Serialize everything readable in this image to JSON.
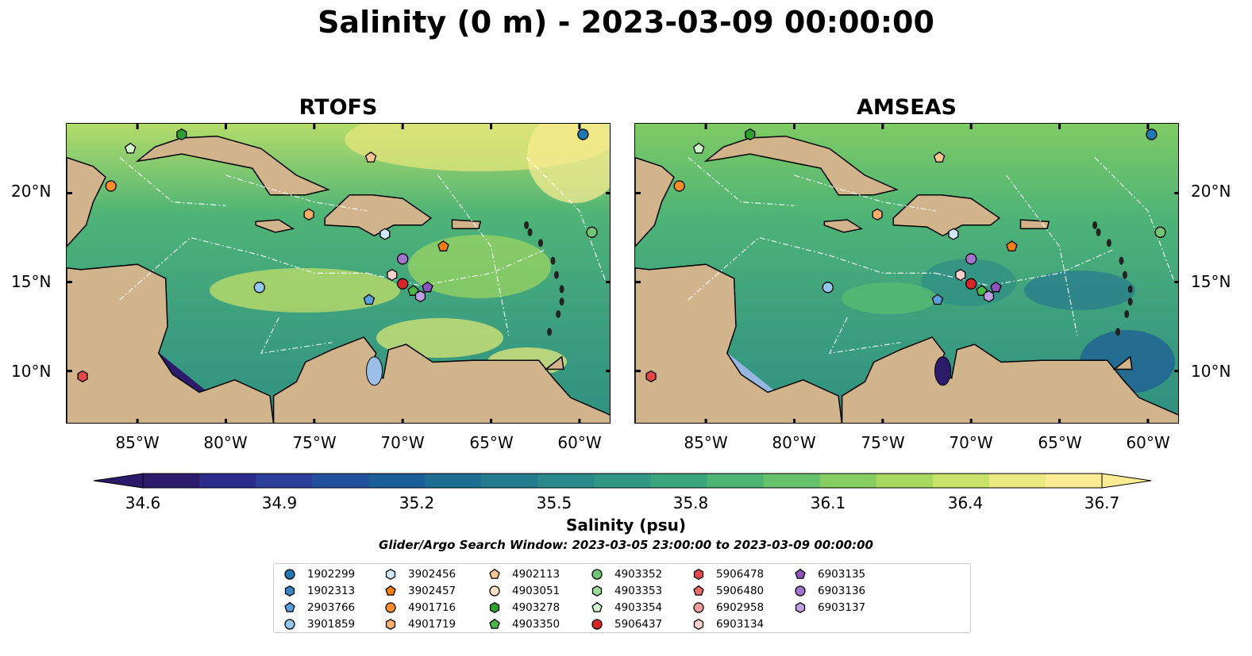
{
  "title": "Salinity (0 m) - 2023-03-09 00:00:00",
  "panels": [
    {
      "name": "RTOFS"
    },
    {
      "name": "AMSEAS"
    }
  ],
  "axes": {
    "lat_ticks": [
      "20°N",
      "15°N",
      "10°N"
    ],
    "lon_ticks": [
      "85°W",
      "80°W",
      "75°W",
      "70°W",
      "65°W",
      "60°W"
    ]
  },
  "colorbar": {
    "label": "Salinity (psu)",
    "ticks": [
      "34.6",
      "34.9",
      "35.2",
      "35.5",
      "35.8",
      "36.1",
      "36.4",
      "36.7"
    ],
    "min": 34.6,
    "max": 36.7,
    "colors": [
      "#2c1a6b",
      "#2b2b8c",
      "#2a3e9a",
      "#21509c",
      "#1b5f98",
      "#1d6e93",
      "#237b8e",
      "#2a8a89",
      "#319883",
      "#3aa67d",
      "#4cb574",
      "#66c26a",
      "#86cd62",
      "#a7d860",
      "#c9e26a",
      "#eae981",
      "#fbec93"
    ]
  },
  "search_window": "Glider/Argo Search Window: 2023-03-05 23:00:00 to 2023-03-09 00:00:00",
  "legend": [
    {
      "id": "1902299",
      "shape": "circle",
      "color": "#1f77b4"
    },
    {
      "id": "1902313",
      "shape": "hexagon",
      "color": "#3b86c6"
    },
    {
      "id": "2903766",
      "shape": "pentagon",
      "color": "#5aa0dd"
    },
    {
      "id": "3901859",
      "shape": "circle",
      "color": "#93c6ec"
    },
    {
      "id": "3902456",
      "shape": "hexagon",
      "color": "#cfe7f8"
    },
    {
      "id": "3902457",
      "shape": "pentagon",
      "color": "#f57f0f"
    },
    {
      "id": "4901716",
      "shape": "circle",
      "color": "#fb8c2c"
    },
    {
      "id": "4901719",
      "shape": "hexagon",
      "color": "#fdad6a"
    },
    {
      "id": "4902113",
      "shape": "pentagon",
      "color": "#fdc692"
    },
    {
      "id": "4903051",
      "shape": "circle",
      "color": "#fde2c8"
    },
    {
      "id": "4903278",
      "shape": "hexagon",
      "color": "#2ca02c"
    },
    {
      "id": "4903350",
      "shape": "pentagon",
      "color": "#49b649"
    },
    {
      "id": "4903352",
      "shape": "circle",
      "color": "#74c476"
    },
    {
      "id": "4903353",
      "shape": "hexagon",
      "color": "#9ed99b"
    },
    {
      "id": "4903354",
      "shape": "pentagon",
      "color": "#d2f2cc"
    },
    {
      "id": "5906437",
      "shape": "circle",
      "color": "#d62728"
    },
    {
      "id": "5906478",
      "shape": "hexagon",
      "color": "#e2474a"
    },
    {
      "id": "5906480",
      "shape": "pentagon",
      "color": "#ec6c6e"
    },
    {
      "id": "6902958",
      "shape": "circle",
      "color": "#f59d9b"
    },
    {
      "id": "6903134",
      "shape": "hexagon",
      "color": "#fcd0cc"
    },
    {
      "id": "6903135",
      "shape": "pentagon",
      "color": "#8c55be"
    },
    {
      "id": "6903136",
      "shape": "circle",
      "color": "#a276cf"
    },
    {
      "id": "6903137",
      "shape": "hexagon",
      "color": "#bf9fe1"
    }
  ],
  "floats": [
    {
      "id": "1902299",
      "lon": -59.8,
      "lat": 23.3
    },
    {
      "id": "4903278",
      "lon": -82.5,
      "lat": 23.3
    },
    {
      "id": "4903354",
      "lon": -85.4,
      "lat": 22.5
    },
    {
      "id": "4902113",
      "lon": -71.8,
      "lat": 22.0
    },
    {
      "id": "4901716",
      "lon": -86.5,
      "lat": 20.4
    },
    {
      "id": "4901719",
      "lon": -75.3,
      "lat": 18.8
    },
    {
      "id": "4903352",
      "lon": -59.3,
      "lat": 17.8
    },
    {
      "id": "3902456",
      "lon": -71.0,
      "lat": 17.7
    },
    {
      "id": "3902457",
      "lon": -67.7,
      "lat": 17.0
    },
    {
      "id": "6903136",
      "lon": -70.0,
      "lat": 16.3
    },
    {
      "id": "6903134",
      "lon": -70.6,
      "lat": 15.4
    },
    {
      "id": "5906437",
      "lon": -70.0,
      "lat": 14.9
    },
    {
      "id": "3901859",
      "lon": -78.1,
      "lat": 14.7
    },
    {
      "id": "6903135",
      "lon": -68.6,
      "lat": 14.7
    },
    {
      "id": "4903350",
      "lon": -69.4,
      "lat": 14.5
    },
    {
      "id": "6903137",
      "lon": -69.0,
      "lat": 14.2
    },
    {
      "id": "2903766",
      "lon": -71.9,
      "lat": 14.0
    },
    {
      "id": "5906478",
      "lon": -88.1,
      "lat": 9.7
    }
  ]
}
